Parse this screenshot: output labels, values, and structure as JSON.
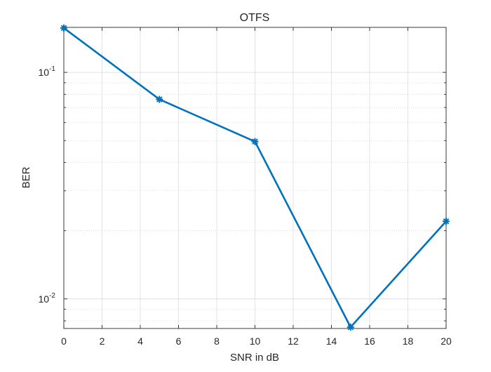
{
  "chart_data": {
    "type": "line",
    "title": "OTFS",
    "xlabel": "SNR in dB",
    "ylabel": "BER",
    "xlim": [
      0,
      20
    ],
    "ylim": [
      0.0074,
      0.158
    ],
    "yscale": "log",
    "grid": true,
    "x_ticks": [
      0,
      2,
      4,
      6,
      8,
      10,
      12,
      14,
      16,
      18,
      20
    ],
    "y_major_ticks": [
      0.01,
      0.1
    ],
    "y_tick_labels": [
      {
        "value": 0.01,
        "base": "10",
        "exponent": "-2"
      },
      {
        "value": 0.1,
        "base": "10",
        "exponent": "-1"
      }
    ],
    "series": [
      {
        "color": "#0072BD",
        "marker": "asterisk",
        "x": [
          0,
          5,
          10,
          15,
          20
        ],
        "y": [
          0.157,
          0.076,
          0.0495,
          0.0075,
          0.022
        ]
      }
    ]
  }
}
